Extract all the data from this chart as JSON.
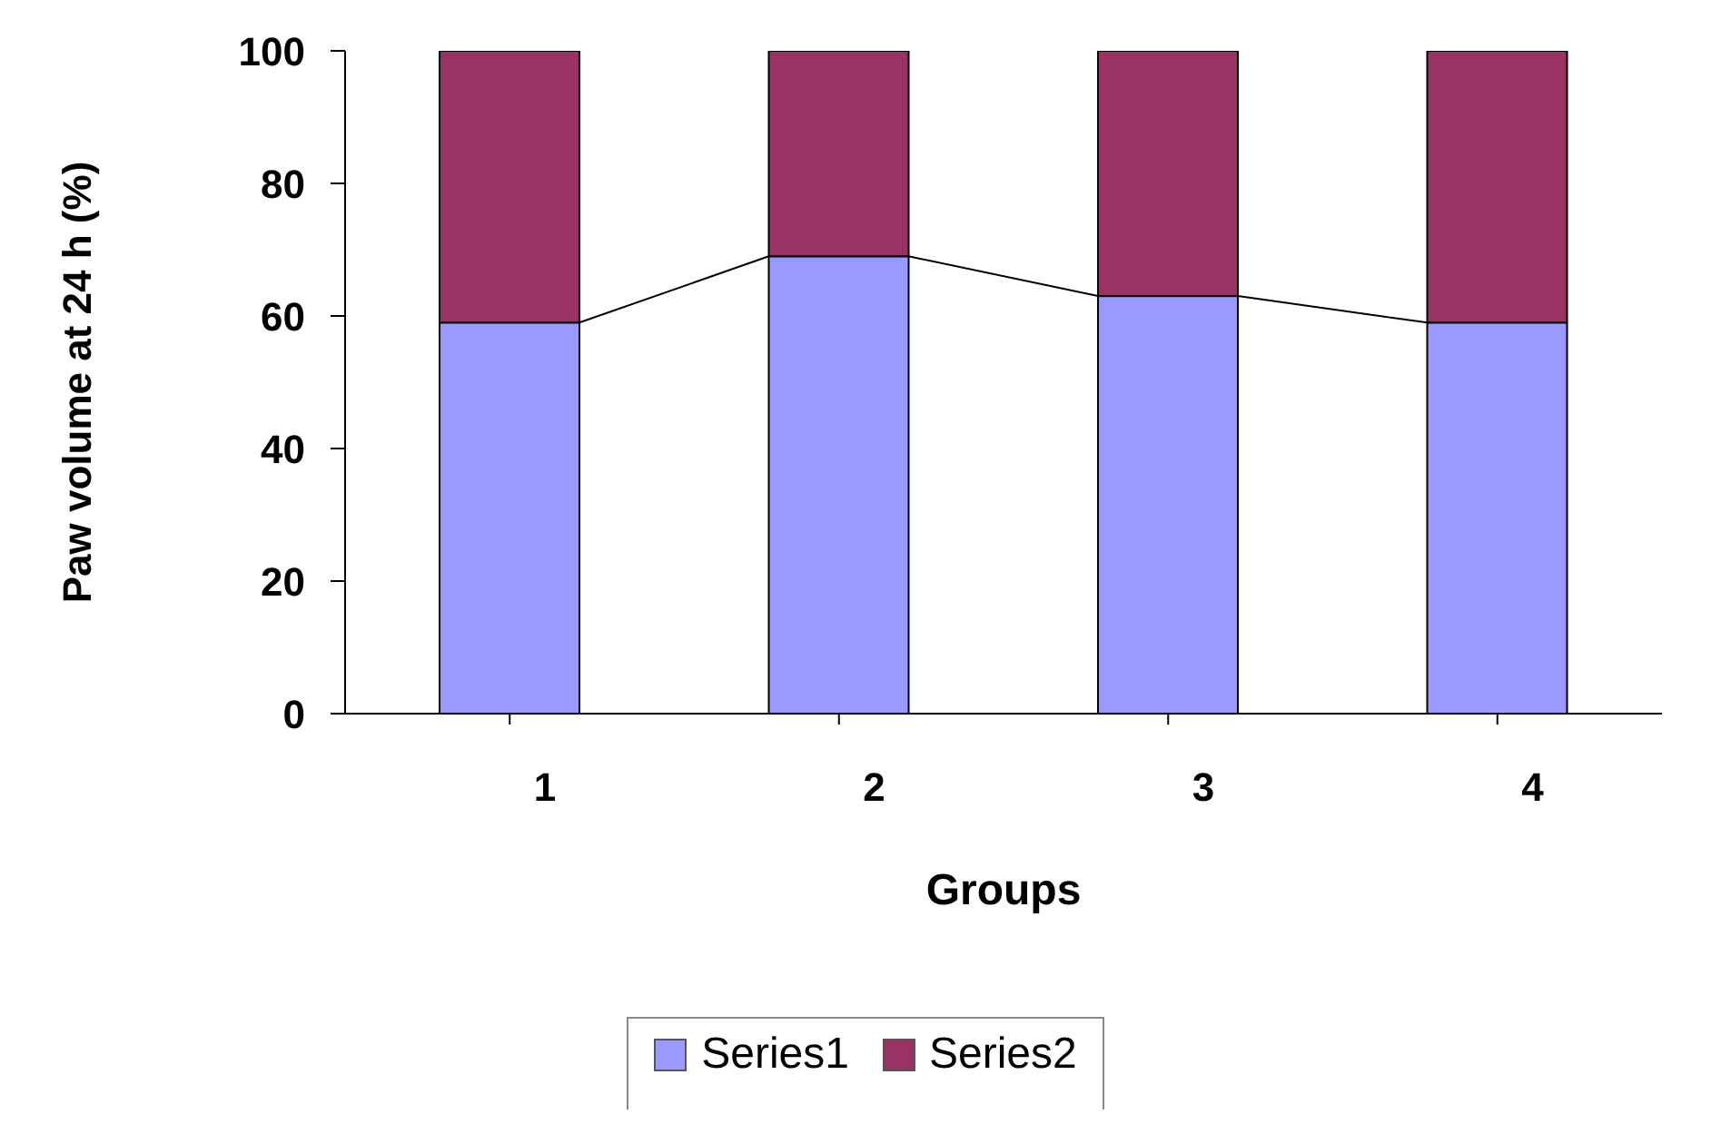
{
  "chart_data": {
    "type": "bar",
    "stacked": true,
    "xlabel": "Groups",
    "ylabel": "Paw volume at 24 h (%)",
    "categories": [
      "1",
      "2",
      "3",
      "4"
    ],
    "series": [
      {
        "name": "Series1",
        "color": "#9999ff",
        "values": [
          59,
          69,
          63,
          59
        ]
      },
      {
        "name": "Series2",
        "color": "#993366",
        "values": [
          41,
          31,
          37,
          41
        ]
      }
    ],
    "ylim": [
      0,
      100
    ],
    "yticks": [
      0,
      20,
      40,
      60,
      80,
      100
    ],
    "grid": false,
    "legend": "bottom"
  }
}
